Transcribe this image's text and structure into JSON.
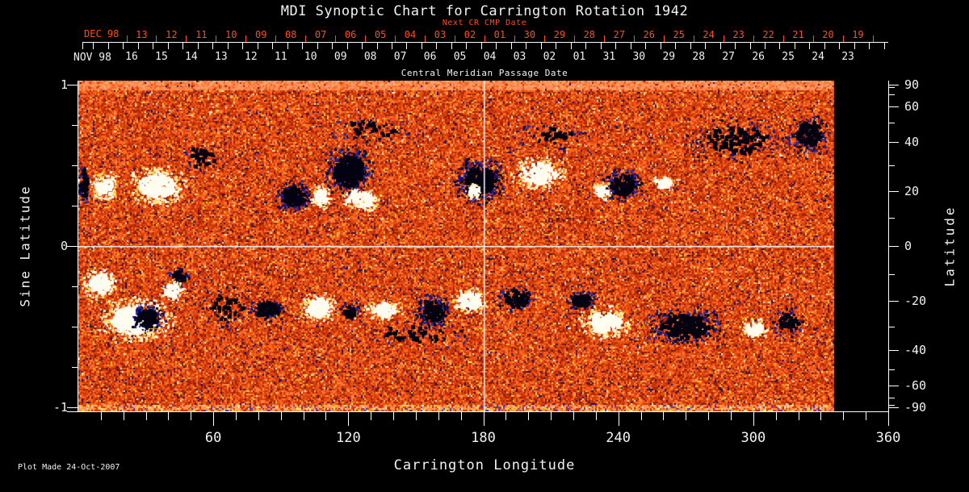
{
  "footer": {
    "plot_made": "Plot Made 24-Oct-2007"
  },
  "colors": {
    "background": "#000000",
    "text": "#f2f2f2",
    "accent_red": "#ff4d12",
    "grid_white": "#ffffff"
  },
  "chart_data": {
    "type": "heatmap",
    "title": "MDI Synoptic Chart for Carrington Rotation 1942",
    "xlabel": "Carrington Longitude",
    "ylabel_left": "Sine Latitude",
    "ylabel_right": "Latitude",
    "xlim": [
      0,
      360
    ],
    "ylim_sine": [
      -1,
      1
    ],
    "x_ticks_major": [
      60,
      120,
      180,
      240,
      300,
      360
    ],
    "x_minor_step": 10,
    "left_ticks": [
      {
        "v": 1,
        "label": "1"
      },
      {
        "v": 0,
        "label": "0"
      },
      {
        "v": -1,
        "label": "-1"
      }
    ],
    "left_minor": [
      0.75,
      0.5,
      0.25,
      -0.25,
      -0.5,
      -0.75
    ],
    "right_ticks_deg": [
      {
        "v": 90,
        "label": "90"
      },
      {
        "v": 60,
        "label": "60"
      },
      {
        "v": 40,
        "label": "40"
      },
      {
        "v": 20,
        "label": "20"
      },
      {
        "v": 0,
        "label": "0"
      },
      {
        "v": -20,
        "label": "-20"
      },
      {
        "v": -40,
        "label": "-40"
      },
      {
        "v": -60,
        "label": "-60"
      },
      {
        "v": -90,
        "label": "-90"
      }
    ],
    "right_minor_deg": [
      80,
      70,
      50,
      30,
      10,
      -10,
      -30,
      -50,
      -70,
      -80
    ],
    "top_axis": {
      "label": "Central Meridian Passage Date",
      "next_cr_label": "Next CR CMP Date",
      "next_cr_month": "DEC 98",
      "next_cr_days": [
        "13",
        "12",
        "11",
        "10",
        "09",
        "08",
        "07",
        "06",
        "05",
        "04",
        "03",
        "02",
        "01",
        "30",
        "29",
        "28",
        "27",
        "26",
        "25",
        "24",
        "23",
        "22",
        "21",
        "20",
        "19"
      ],
      "cmp_month": "NOV 98",
      "cmp_days": [
        "16",
        "15",
        "14",
        "13",
        "12",
        "11",
        "10",
        "09",
        "08",
        "07",
        "06",
        "05",
        "04",
        "03",
        "02",
        "01",
        "31",
        "30",
        "29",
        "28",
        "27",
        "26",
        "25",
        "24",
        "23"
      ]
    },
    "grid_lines": {
      "vertical_deg": 180,
      "horizontal_sine": 0
    },
    "data_end_deg": 336,
    "palette_main": [
      [
        "#8f1c00",
        10
      ],
      [
        "#b62b06",
        14
      ],
      [
        "#d23a0c",
        20
      ],
      [
        "#e94f12",
        22
      ],
      [
        "#ff6a1e",
        16
      ],
      [
        "#ff8542",
        8
      ],
      [
        "#ffc33c",
        4.5
      ],
      [
        "#171061",
        3.5
      ],
      [
        "#fff2cc",
        1
      ],
      [
        "#40120a",
        1
      ]
    ],
    "palette_top": [
      [
        "#ff8a50",
        3
      ],
      [
        "#ff9d68",
        3
      ],
      [
        "#fb7434",
        2
      ],
      [
        "#ffb078",
        1
      ],
      [
        "#f2601e",
        1
      ]
    ],
    "palette_bottom": [
      [
        "#ff8b3d",
        3
      ],
      [
        "#ffd24a",
        1.5
      ],
      [
        "#e03515",
        2
      ],
      [
        "#3333cc",
        0.7
      ],
      [
        "#ff9f5f",
        2
      ],
      [
        "#fff3a0",
        0.8
      ],
      [
        "#cc2200",
        1
      ]
    ],
    "active_regions": [
      [
        2.7,
        0.38,
        3,
        0.145,
        "b",
        0.7
      ],
      [
        11.8,
        0.365,
        7,
        0.1,
        "w",
        0.6
      ],
      [
        35,
        0.37,
        14,
        0.135,
        "w",
        0.75
      ],
      [
        96,
        0.305,
        9,
        0.11,
        "b",
        0.75
      ],
      [
        108,
        0.3,
        5,
        0.085,
        "w",
        0.7
      ],
      [
        120.5,
        0.465,
        12,
        0.17,
        "b",
        0.75
      ],
      [
        127,
        0.285,
        9,
        0.08,
        "w",
        0.55
      ],
      [
        122,
        0.3,
        6,
        0.06,
        "w",
        0.4
      ],
      [
        178.7,
        0.4,
        12.5,
        0.155,
        "b",
        0.8
      ],
      [
        176,
        0.335,
        4,
        0.055,
        "w",
        0.9
      ],
      [
        204.6,
        0.45,
        14,
        0.115,
        "w",
        0.45
      ],
      [
        242.3,
        0.375,
        10,
        0.11,
        "b",
        0.7
      ],
      [
        233,
        0.34,
        4.5,
        0.065,
        "w",
        0.7
      ],
      [
        260,
        0.39,
        6,
        0.06,
        "w",
        0.4
      ],
      [
        293,
        0.655,
        26,
        0.145,
        "b",
        0.18
      ],
      [
        325,
        0.69,
        10,
        0.135,
        "b",
        0.55
      ],
      [
        130,
        0.72,
        20,
        0.1,
        "b",
        0.12
      ],
      [
        210,
        0.68,
        18,
        0.1,
        "b",
        0.12
      ],
      [
        55,
        0.55,
        12,
        0.12,
        "b",
        0.1
      ],
      [
        9.7,
        -0.235,
        8.5,
        0.11,
        "w",
        0.6
      ],
      [
        25,
        -0.46,
        18,
        0.155,
        "w",
        0.7
      ],
      [
        31,
        -0.45,
        8,
        0.1,
        "b",
        0.85
      ],
      [
        44.9,
        -0.19,
        5,
        0.07,
        "b",
        0.6
      ],
      [
        42,
        -0.28,
        6,
        0.08,
        "w",
        0.5
      ],
      [
        84.3,
        -0.395,
        9,
        0.08,
        "b",
        0.7
      ],
      [
        106.6,
        -0.385,
        9,
        0.1,
        "w",
        0.7
      ],
      [
        121,
        -0.41,
        5.5,
        0.07,
        "b",
        0.5
      ],
      [
        135.7,
        -0.4,
        9,
        0.075,
        "w",
        0.6
      ],
      [
        158,
        -0.41,
        8,
        0.12,
        "b",
        0.7
      ],
      [
        174.4,
        -0.34,
        9,
        0.09,
        "w",
        0.65
      ],
      [
        194.6,
        -0.33,
        10,
        0.095,
        "b",
        0.4
      ],
      [
        223.6,
        -0.34,
        8,
        0.075,
        "b",
        0.65
      ],
      [
        234.4,
        -0.475,
        12.5,
        0.115,
        "w",
        0.65
      ],
      [
        269.5,
        -0.5,
        20,
        0.13,
        "b",
        0.5
      ],
      [
        300.8,
        -0.51,
        7,
        0.075,
        "w",
        0.6
      ],
      [
        315.8,
        -0.475,
        8,
        0.1,
        "b",
        0.35
      ],
      [
        66,
        -0.38,
        14,
        0.15,
        "b",
        0.1
      ],
      [
        150,
        -0.55,
        30,
        0.1,
        "b",
        0.08
      ]
    ]
  }
}
